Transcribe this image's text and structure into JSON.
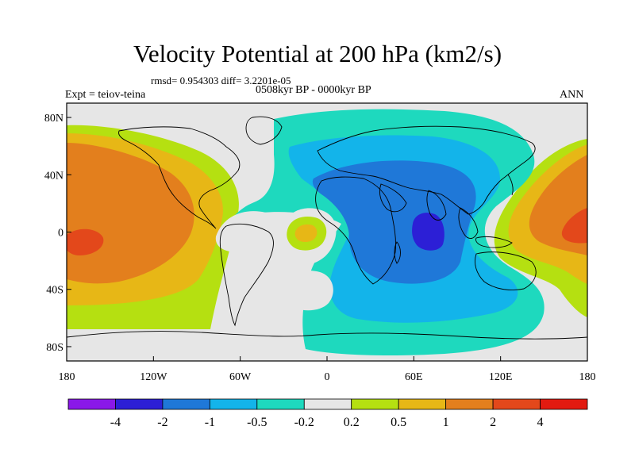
{
  "title": "Velocity Potential at 200 hPa (km2/s)",
  "stats": "rmsd= 0.954303 diff= 3.2201e-05",
  "period": "0508kyr BP - 0000kyr BP",
  "expt": "Expt = teiov-teina",
  "season": "ANN",
  "axes": {
    "lon_ticks": [
      "180",
      "120W",
      "60W",
      "0",
      "60E",
      "120E",
      "180"
    ],
    "lat_ticks": [
      "80N",
      "40N",
      "0",
      "40S",
      "80S"
    ],
    "lon_values": [
      -180,
      -120,
      -60,
      0,
      60,
      120,
      180
    ],
    "lat_values": [
      80,
      40,
      0,
      -40,
      -80
    ]
  },
  "colorbar": {
    "labels": [
      "-4",
      "-2",
      "-1",
      "-0.5",
      "-0.2",
      "0.2",
      "0.5",
      "1",
      "2",
      "4"
    ],
    "colors": [
      "#8a18e8",
      "#2c1fd6",
      "#1f78d8",
      "#13b4ea",
      "#1ed9be",
      "#e6e6e6",
      "#b5e011",
      "#e7b716",
      "#e37f1d",
      "#e3481b",
      "#e21a10"
    ]
  },
  "map_colors": {
    "background": "#e6e6e6",
    "coast": "#000000"
  }
}
